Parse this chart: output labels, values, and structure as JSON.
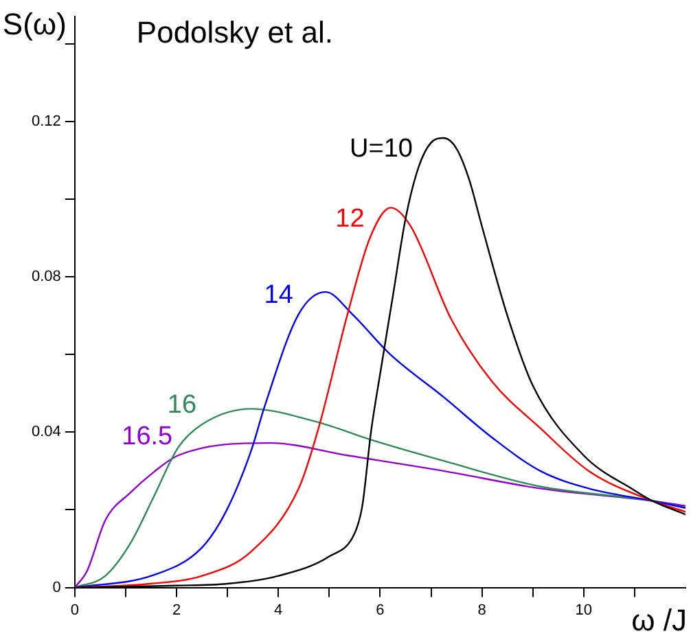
{
  "chart_data": {
    "type": "line",
    "title": "Podolsky et al.",
    "xlabel": "ω /J",
    "ylabel": "S(ω)",
    "xlim": [
      0,
      12
    ],
    "xticks": [
      0,
      {
        "value": 1,
        "label": null
      },
      2,
      {
        "value": 3,
        "label": null
      },
      4,
      {
        "value": 5,
        "label": null
      },
      6,
      {
        "value": 7,
        "label": null
      },
      8,
      {
        "value": 9,
        "label": null
      },
      10,
      {
        "value": 11,
        "label": null
      }
    ],
    "ylim": [
      0,
      0.147
    ],
    "yticks": [
      0,
      {
        "value": 0.02,
        "label": null
      },
      0.04,
      {
        "value": 0.06,
        "label": null
      },
      0.08,
      {
        "value": 0.1,
        "label": null
      },
      0.12,
      {
        "value": 0.14,
        "label": null
      }
    ],
    "grid": false,
    "legend": false,
    "marker": "none",
    "line_style": "solid",
    "series": [
      {
        "name": "U=10",
        "color": "#000000",
        "x": [
          0,
          2,
          3,
          4,
          5,
          5.5,
          5.65,
          5.82,
          6,
          6.25,
          6.5,
          6.75,
          7,
          7.25,
          7.5,
          7.75,
          8,
          8.5,
          9,
          10,
          11,
          11.35,
          12
        ],
        "values": [
          0,
          0.0005,
          0.001,
          0.003,
          0.008,
          0.014,
          0.021,
          0.04,
          0.055,
          0.075,
          0.095,
          0.108,
          0.1145,
          0.1157,
          0.113,
          0.105,
          0.093,
          0.07,
          0.052,
          0.034,
          0.025,
          0.0223,
          0.0188
        ]
      },
      {
        "name": "12",
        "color": "#ff0000",
        "x": [
          0,
          1.5,
          2.5,
          3.46,
          4.4,
          4.79,
          5.36,
          5.8,
          6.21,
          6.6,
          7.4,
          8.2,
          9.15,
          10.1,
          11.35,
          12
        ],
        "values": [
          0,
          0.001,
          0.003,
          0.0092,
          0.0255,
          0.041,
          0.0704,
          0.09,
          0.0978,
          0.093,
          0.069,
          0.053,
          0.041,
          0.03,
          0.0223,
          0.0195
        ]
      },
      {
        "name": "14",
        "color": "#0000ff",
        "x": [
          0,
          1.55,
          2.5,
          2.98,
          3.46,
          3.74,
          4.4,
          4.93,
          5.45,
          6.2,
          7.25,
          8.2,
          9.15,
          10.1,
          11.35,
          12
        ],
        "values": [
          0,
          0.0032,
          0.0103,
          0.0198,
          0.035,
          0.047,
          0.0704,
          0.0761,
          0.0704,
          0.06,
          0.049,
          0.0386,
          0.03,
          0.0255,
          0.0223,
          0.0205
        ]
      },
      {
        "name": "16",
        "color": "#2e8b57",
        "x": [
          0,
          0.6,
          1.09,
          1.55,
          2.03,
          2.5,
          3.46,
          4.79,
          5.83,
          7.25,
          9.15,
          11.35,
          12
        ],
        "values": [
          0,
          0.003,
          0.0113,
          0.0233,
          0.036,
          0.042,
          0.046,
          0.0425,
          0.038,
          0.0326,
          0.026,
          0.0223,
          0.0205
        ]
      },
      {
        "name": "16.5",
        "color": "#9400d3",
        "x": [
          0,
          0.24,
          0.6,
          1.09,
          1.55,
          2.03,
          3.84,
          5.36,
          7.25,
          9.15,
          11.35,
          12
        ],
        "values": [
          0,
          0.0042,
          0.0173,
          0.0244,
          0.0297,
          0.034,
          0.0372,
          0.034,
          0.03,
          0.0255,
          0.0223,
          0.021
        ]
      }
    ]
  }
}
